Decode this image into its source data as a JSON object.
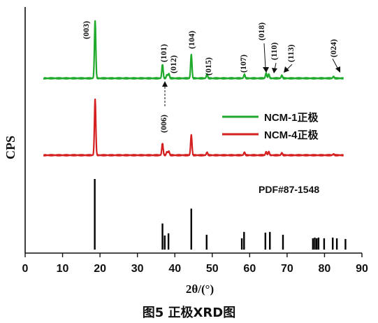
{
  "caption": "图5    正极XRD图",
  "chart_data": {
    "type": "line",
    "title": "",
    "xlabel": "2θ/(°)",
    "ylabel": "CPS",
    "xlim": [
      0,
      90
    ],
    "x_ticks": [
      0,
      10,
      20,
      30,
      40,
      50,
      60,
      70,
      80,
      90
    ],
    "grid": false,
    "legend_position": "right-middle",
    "colors": {
      "ncm1": "#1faa2c",
      "ncm4": "#d42020",
      "reference": "#000000"
    },
    "series": [
      {
        "name": "NCM-1正极",
        "color": "#1faa2c",
        "baseline": 0.0,
        "peaks": [
          {
            "x": 18.7,
            "y": 1.0
          },
          {
            "x": 36.7,
            "y": 0.24
          },
          {
            "x": 37.9,
            "y": 0.06
          },
          {
            "x": 38.4,
            "y": 0.08
          },
          {
            "x": 44.4,
            "y": 0.41
          },
          {
            "x": 48.6,
            "y": 0.07
          },
          {
            "x": 58.6,
            "y": 0.07
          },
          {
            "x": 64.4,
            "y": 0.09
          },
          {
            "x": 65.1,
            "y": 0.07
          },
          {
            "x": 68.6,
            "y": 0.05
          },
          {
            "x": 82.4,
            "y": 0.03
          }
        ]
      },
      {
        "name": "NCM-4正极",
        "color": "#d42020",
        "baseline": 0.0,
        "peaks": [
          {
            "x": 18.7,
            "y": 1.0
          },
          {
            "x": 36.7,
            "y": 0.21
          },
          {
            "x": 37.9,
            "y": 0.06
          },
          {
            "x": 38.4,
            "y": 0.07
          },
          {
            "x": 44.4,
            "y": 0.36
          },
          {
            "x": 48.6,
            "y": 0.05
          },
          {
            "x": 58.6,
            "y": 0.05
          },
          {
            "x": 64.4,
            "y": 0.06
          },
          {
            "x": 65.1,
            "y": 0.06
          },
          {
            "x": 68.6,
            "y": 0.04
          },
          {
            "x": 82.4,
            "y": 0.02
          }
        ]
      }
    ],
    "peak_labels": [
      "(003)",
      "(101)",
      "(006)",
      "(012)",
      "(104)",
      "(015)",
      "(107)",
      "(018)",
      "(110)",
      "(113)",
      "(024)"
    ],
    "legend": [
      "NCM-1正极",
      "NCM-4正极"
    ],
    "reference": {
      "label": "PDF#87-1548",
      "lines": [
        {
          "x": 18.6,
          "y": 1.0
        },
        {
          "x": 36.7,
          "y": 0.37
        },
        {
          "x": 37.3,
          "y": 0.2
        },
        {
          "x": 38.3,
          "y": 0.23
        },
        {
          "x": 44.4,
          "y": 0.58
        },
        {
          "x": 48.5,
          "y": 0.21
        },
        {
          "x": 57.9,
          "y": 0.16
        },
        {
          "x": 58.5,
          "y": 0.25
        },
        {
          "x": 64.2,
          "y": 0.24
        },
        {
          "x": 65.4,
          "y": 0.25
        },
        {
          "x": 68.9,
          "y": 0.21
        },
        {
          "x": 76.9,
          "y": 0.16
        },
        {
          "x": 77.4,
          "y": 0.17
        },
        {
          "x": 77.9,
          "y": 0.16
        },
        {
          "x": 78.4,
          "y": 0.17
        },
        {
          "x": 79.9,
          "y": 0.16
        },
        {
          "x": 82.2,
          "y": 0.17
        },
        {
          "x": 83.3,
          "y": 0.16
        },
        {
          "x": 85.6,
          "y": 0.15
        }
      ]
    }
  }
}
